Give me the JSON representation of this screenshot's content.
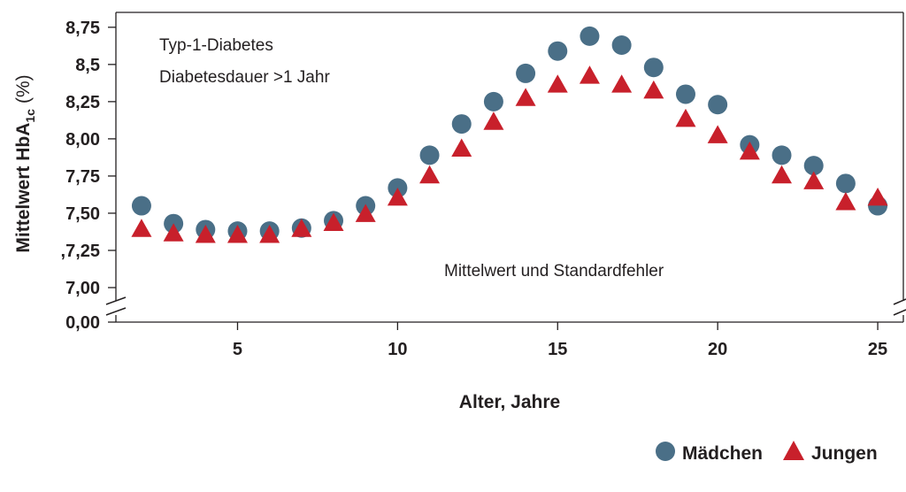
{
  "chart_data": {
    "type": "scatter",
    "title": "",
    "xlabel": "Alter, Jahre",
    "ylabel_main": "Mittelwert HbA",
    "ylabel_sub": "1c",
    "ylabel_unit": "(%)",
    "xlim": [
      1.2,
      25.8
    ],
    "ylim": [
      7.0,
      8.85
    ],
    "axis_break": true,
    "x_ticks": [
      {
        "value": 5,
        "label": "5"
      },
      {
        "value": 10,
        "label": "10"
      },
      {
        "value": 15,
        "label": "15"
      },
      {
        "value": 20,
        "label": "20"
      },
      {
        "value": 25,
        "label": "25"
      }
    ],
    "y_ticks": [
      {
        "value": 8.75,
        "label": "8,75"
      },
      {
        "value": 8.5,
        "label": "8,5"
      },
      {
        "value": 8.25,
        "label": "8,25"
      },
      {
        "value": 8.0,
        "label": "8,00"
      },
      {
        "value": 7.75,
        "label": "7,75"
      },
      {
        "value": 7.5,
        "label": "7,50"
      },
      {
        "value": 7.25,
        "label": ",7,25"
      },
      {
        "value": 7.0,
        "label": "7,00"
      }
    ],
    "y_zero_label": "0,00",
    "annotations": {
      "line1": "Typ-1-Diabetes",
      "line2": "Diabetesdauer >1 Jahr",
      "note": "Mittelwert und Standardfehler"
    },
    "legend_position": "bottom-right",
    "x": [
      2,
      3,
      4,
      5,
      6,
      7,
      8,
      9,
      10,
      11,
      12,
      13,
      14,
      15,
      16,
      17,
      18,
      19,
      20,
      21,
      22,
      23,
      24,
      25
    ],
    "series": [
      {
        "name": "Mädchen",
        "marker": "circle",
        "color": "#4a6f87",
        "values": [
          7.55,
          7.43,
          7.39,
          7.38,
          7.38,
          7.4,
          7.45,
          7.55,
          7.67,
          7.89,
          8.1,
          8.25,
          8.44,
          8.59,
          8.69,
          8.63,
          8.48,
          8.3,
          8.23,
          7.96,
          7.89,
          7.82,
          7.7,
          7.55
        ]
      },
      {
        "name": "Jungen",
        "marker": "triangle",
        "color": "#c8202b",
        "values": [
          7.4,
          7.37,
          7.36,
          7.36,
          7.36,
          7.4,
          7.44,
          7.5,
          7.61,
          7.76,
          7.94,
          8.12,
          8.28,
          8.37,
          8.43,
          8.37,
          8.33,
          8.14,
          8.03,
          7.92,
          7.76,
          7.72,
          7.58,
          7.61
        ]
      }
    ]
  }
}
